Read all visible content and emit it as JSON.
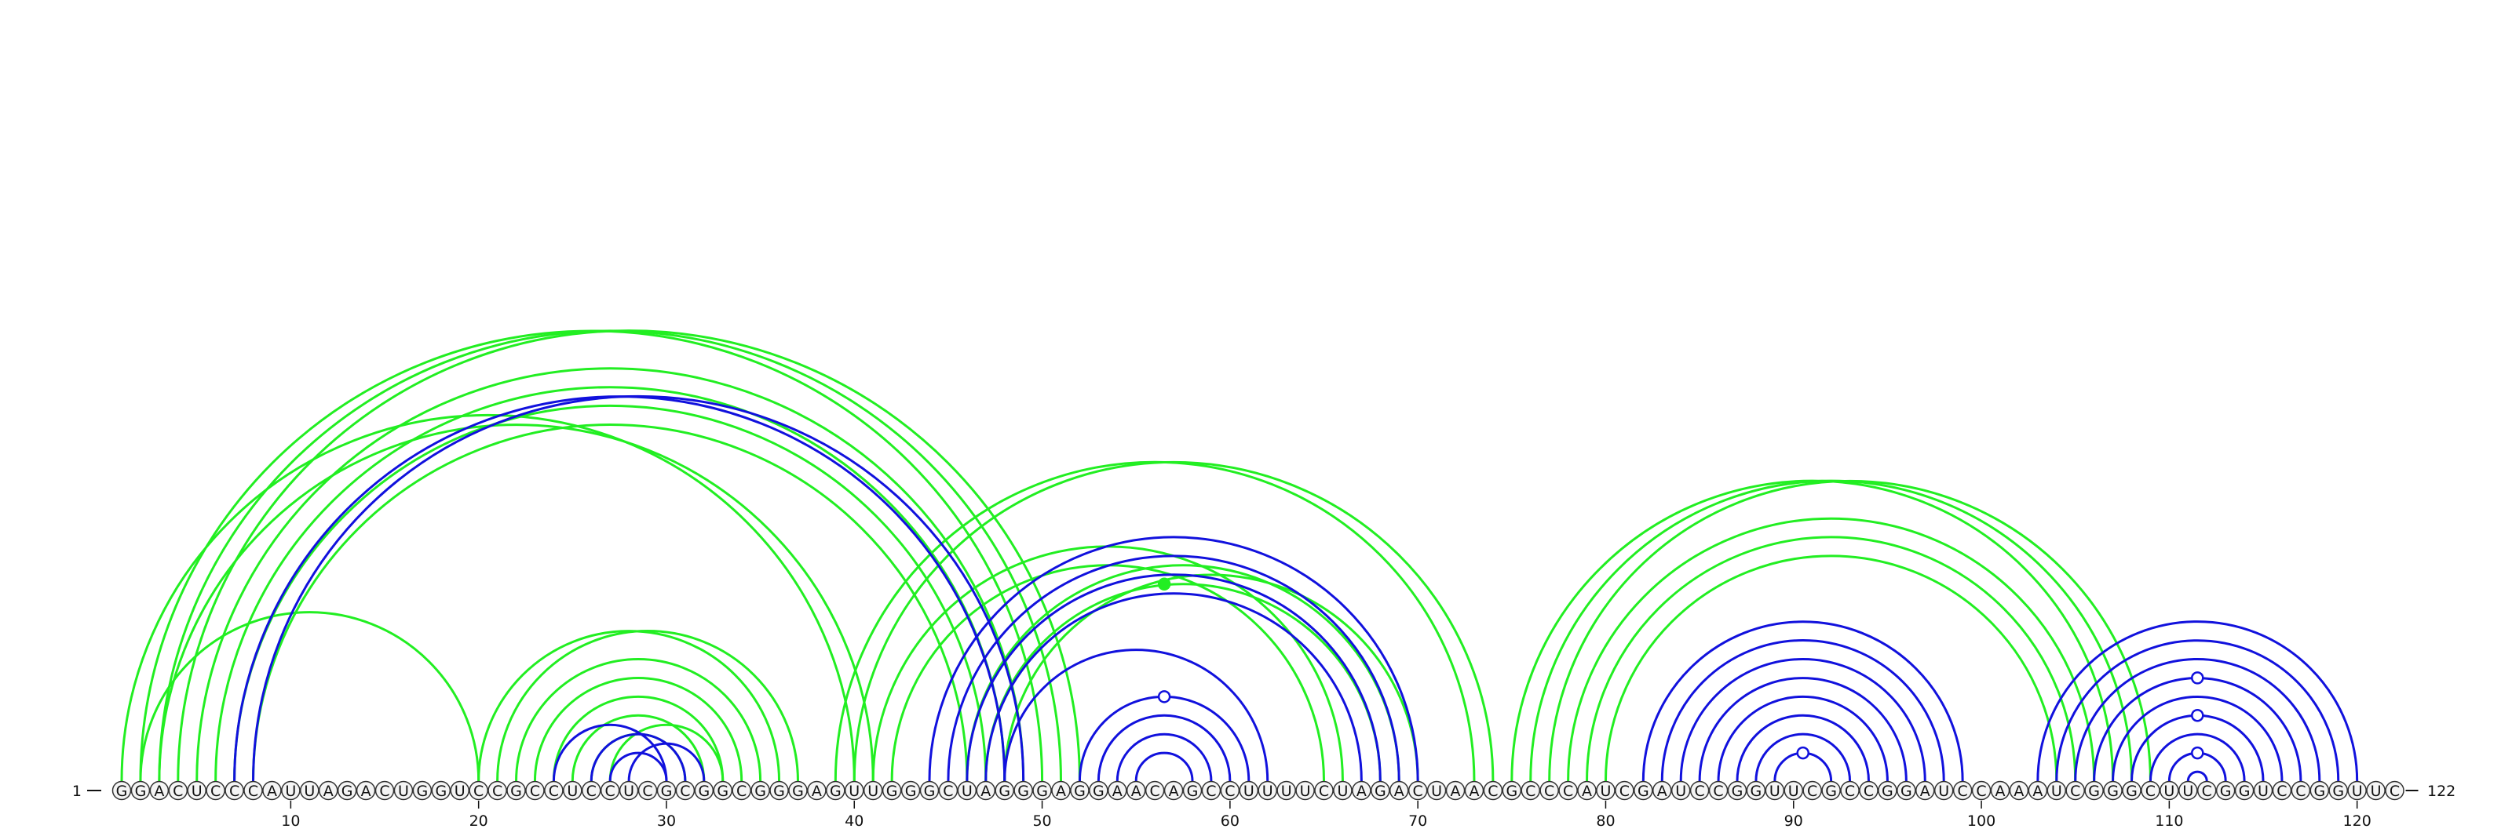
{
  "sequence": "GGACUCCCAUUAGACUGGUCCGCCUCCUCGCGGCGGGAGUUGGGCUAGGGAGGAACAGCCUUUUCUAGACUAACGCCCAUCGAUCCGGUUCGCCGGAUCCAAAUCGGGCUUCGGUCCGGUUC",
  "start_label": "1",
  "end_label": "122",
  "ticks": [
    10,
    20,
    30,
    40,
    50,
    60,
    70,
    80,
    90,
    100,
    110,
    120
  ],
  "colors": {
    "green": "#22ee22",
    "blue": "#1111dd",
    "outline": "#333333",
    "nucleotide_fill": "#f4f4f4"
  },
  "arcs": {
    "green": [
      [
        2,
        50
      ],
      [
        3,
        51
      ],
      [
        4,
        52
      ],
      [
        5,
        49
      ],
      [
        6,
        48
      ],
      [
        7,
        47
      ],
      [
        8,
        46
      ],
      [
        1,
        40
      ],
      [
        2,
        20
      ],
      [
        3,
        41
      ],
      [
        20,
        36
      ],
      [
        21,
        37
      ],
      [
        22,
        35
      ],
      [
        23,
        34
      ],
      [
        24,
        33
      ],
      [
        25,
        32
      ],
      [
        26,
        31
      ],
      [
        27,
        33
      ],
      [
        39,
        73
      ],
      [
        40,
        74
      ],
      [
        41,
        66
      ],
      [
        42,
        65
      ],
      [
        46,
        69
      ],
      [
        47,
        68
      ],
      [
        48,
        70
      ],
      [
        75,
        107
      ],
      [
        76,
        108
      ],
      [
        77,
        109
      ],
      [
        78,
        106
      ],
      [
        79,
        105
      ],
      [
        80,
        104
      ]
    ],
    "blue": [
      [
        7,
        48
      ],
      [
        8,
        49
      ],
      [
        26,
        31
      ],
      [
        27,
        30
      ],
      [
        28,
        32
      ],
      [
        24,
        30
      ],
      [
        44,
        70
      ],
      [
        45,
        69
      ],
      [
        46,
        68
      ],
      [
        47,
        67
      ],
      [
        48,
        62
      ],
      [
        52,
        61
      ],
      [
        53,
        60
      ],
      [
        54,
        59
      ],
      [
        55,
        58
      ],
      [
        82,
        99
      ],
      [
        83,
        98
      ],
      [
        84,
        97
      ],
      [
        85,
        96
      ],
      [
        86,
        95
      ],
      [
        87,
        94
      ],
      [
        88,
        93
      ],
      [
        89,
        92
      ],
      [
        103,
        120
      ],
      [
        104,
        119
      ],
      [
        105,
        118
      ],
      [
        106,
        117
      ],
      [
        107,
        116
      ],
      [
        108,
        115
      ],
      [
        109,
        114
      ],
      [
        110,
        113
      ],
      [
        111,
        112
      ]
    ]
  },
  "markers": [
    {
      "color": "green",
      "filled": true,
      "i": 46,
      "j": 67
    },
    {
      "color": "blue",
      "filled": false,
      "i": 52,
      "j": 61
    },
    {
      "color": "blue",
      "filled": false,
      "i": 89,
      "j": 92
    },
    {
      "color": "blue",
      "filled": false,
      "i": 106,
      "j": 117
    },
    {
      "color": "blue",
      "filled": false,
      "i": 108,
      "j": 115
    },
    {
      "color": "blue",
      "filled": false,
      "i": 110,
      "j": 113
    }
  ]
}
